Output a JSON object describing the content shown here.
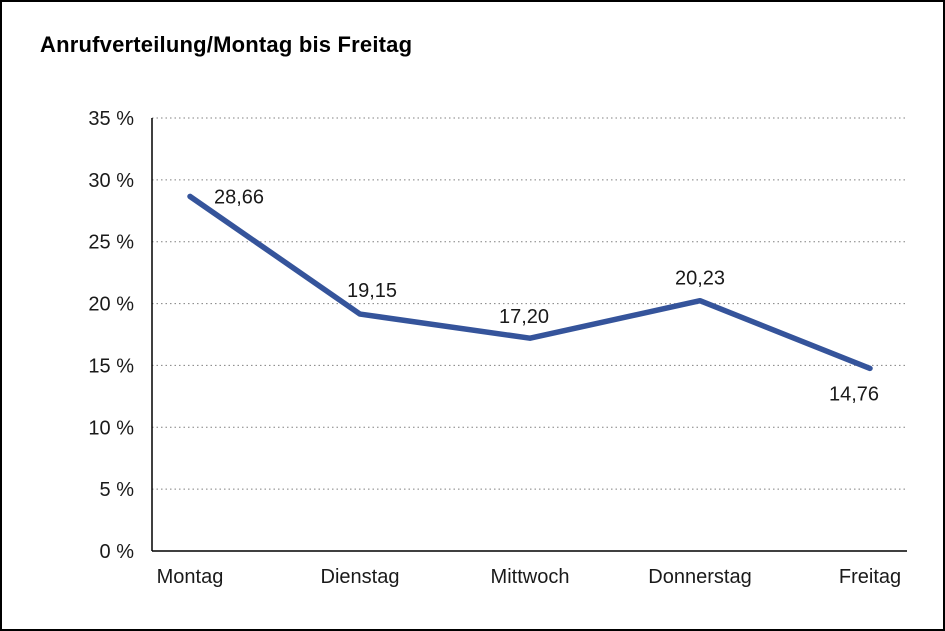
{
  "chart_data": {
    "type": "line",
    "title": "Anrufverteilung/Montag bis Freitag",
    "categories": [
      "Montag",
      "Dienstag",
      "Mittwoch",
      "Donnerstag",
      "Freitag"
    ],
    "values": [
      28.66,
      19.15,
      17.2,
      20.23,
      14.76
    ],
    "value_labels": [
      "28,66",
      "19,15",
      "17,20",
      "20,23",
      "14,76"
    ],
    "xlabel": "",
    "ylabel": "",
    "ylim": [
      0,
      35
    ],
    "ytick_step": 5,
    "ytick_labels": [
      "0 %",
      "5 %",
      "10 %",
      "15 %",
      "20 %",
      "25 %",
      "30 %",
      "35 %"
    ],
    "grid": "horizontal-dotted",
    "legend": "none",
    "line_color": "#35549b",
    "axis_color": "#000000",
    "grid_color": "#808080",
    "text_color": "#1a1a1a"
  }
}
